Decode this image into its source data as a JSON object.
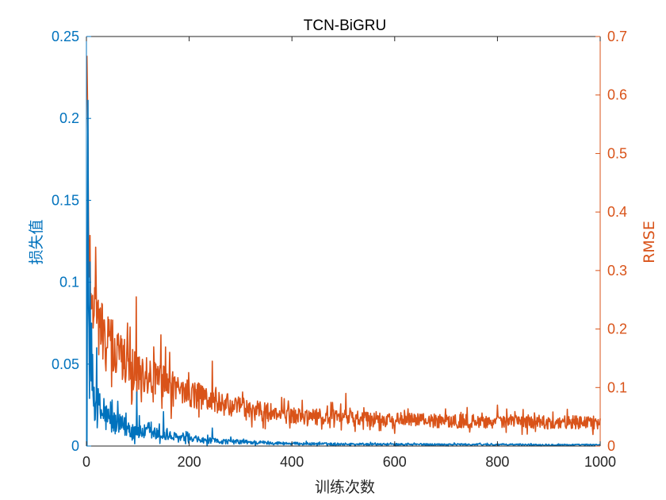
{
  "chart_data": {
    "type": "line",
    "title": "TCN-BiGRU",
    "xlabel": "训练次数",
    "ylabel_left": "损失值",
    "ylabel_right": "RMSE",
    "xlim": [
      0,
      1000
    ],
    "ylim_left": [
      0,
      0.25
    ],
    "ylim_right": [
      0,
      0.7
    ],
    "x_ticks": [
      "0",
      "200",
      "400",
      "600",
      "800",
      "1000"
    ],
    "y_left_ticks": [
      "0",
      "0.05",
      "0.1",
      "0.15",
      "0.2",
      "0.25"
    ],
    "y_right_ticks": [
      "0",
      "0.1",
      "0.2",
      "0.3",
      "0.4",
      "0.5",
      "0.6",
      "0.7"
    ],
    "grid": false,
    "colors": {
      "left": "#0072BD",
      "right": "#D95319",
      "axis": "#262626"
    },
    "series": [
      {
        "axis": "left",
        "color": "#0072BD",
        "x": [
          1,
          3,
          5,
          8,
          10,
          15,
          20,
          25,
          30,
          40,
          50,
          60,
          70,
          80,
          90,
          100,
          120,
          140,
          160,
          180,
          200,
          250,
          300,
          350,
          400,
          500,
          600,
          700,
          800,
          900,
          1000
        ],
        "y": [
          0.12,
          0.11,
          0.065,
          0.05,
          0.04,
          0.03,
          0.025,
          0.022,
          0.02,
          0.017,
          0.015,
          0.013,
          0.012,
          0.011,
          0.01,
          0.009,
          0.008,
          0.007,
          0.006,
          0.005,
          0.004,
          0.003,
          0.0025,
          0.002,
          0.0015,
          0.0012,
          0.001,
          0.001,
          0.0009,
          0.0008,
          0.0007
        ],
        "spikes": [
          [
            10,
            0.075
          ],
          [
            20,
            0.06
          ],
          [
            98,
            0.033
          ],
          [
            150,
            0.021
          ],
          [
            245,
            0.011
          ]
        ]
      },
      {
        "axis": "right",
        "color": "#D95319",
        "x": [
          1,
          3,
          5,
          8,
          10,
          15,
          20,
          30,
          40,
          50,
          60,
          80,
          100,
          120,
          150,
          180,
          200,
          250,
          300,
          350,
          400,
          450,
          500,
          600,
          700,
          800,
          900,
          1000
        ],
        "y": [
          0.65,
          0.45,
          0.36,
          0.3,
          0.27,
          0.24,
          0.22,
          0.2,
          0.18,
          0.17,
          0.16,
          0.14,
          0.13,
          0.12,
          0.11,
          0.1,
          0.09,
          0.075,
          0.065,
          0.058,
          0.052,
          0.05,
          0.048,
          0.045,
          0.043,
          0.042,
          0.041,
          0.04
        ],
        "spikes": [
          [
            18,
            0.34
          ],
          [
            97,
            0.255
          ],
          [
            145,
            0.19
          ],
          [
            245,
            0.145
          ],
          [
            505,
            0.09
          ],
          [
            800,
            0.07
          ]
        ]
      }
    ]
  }
}
